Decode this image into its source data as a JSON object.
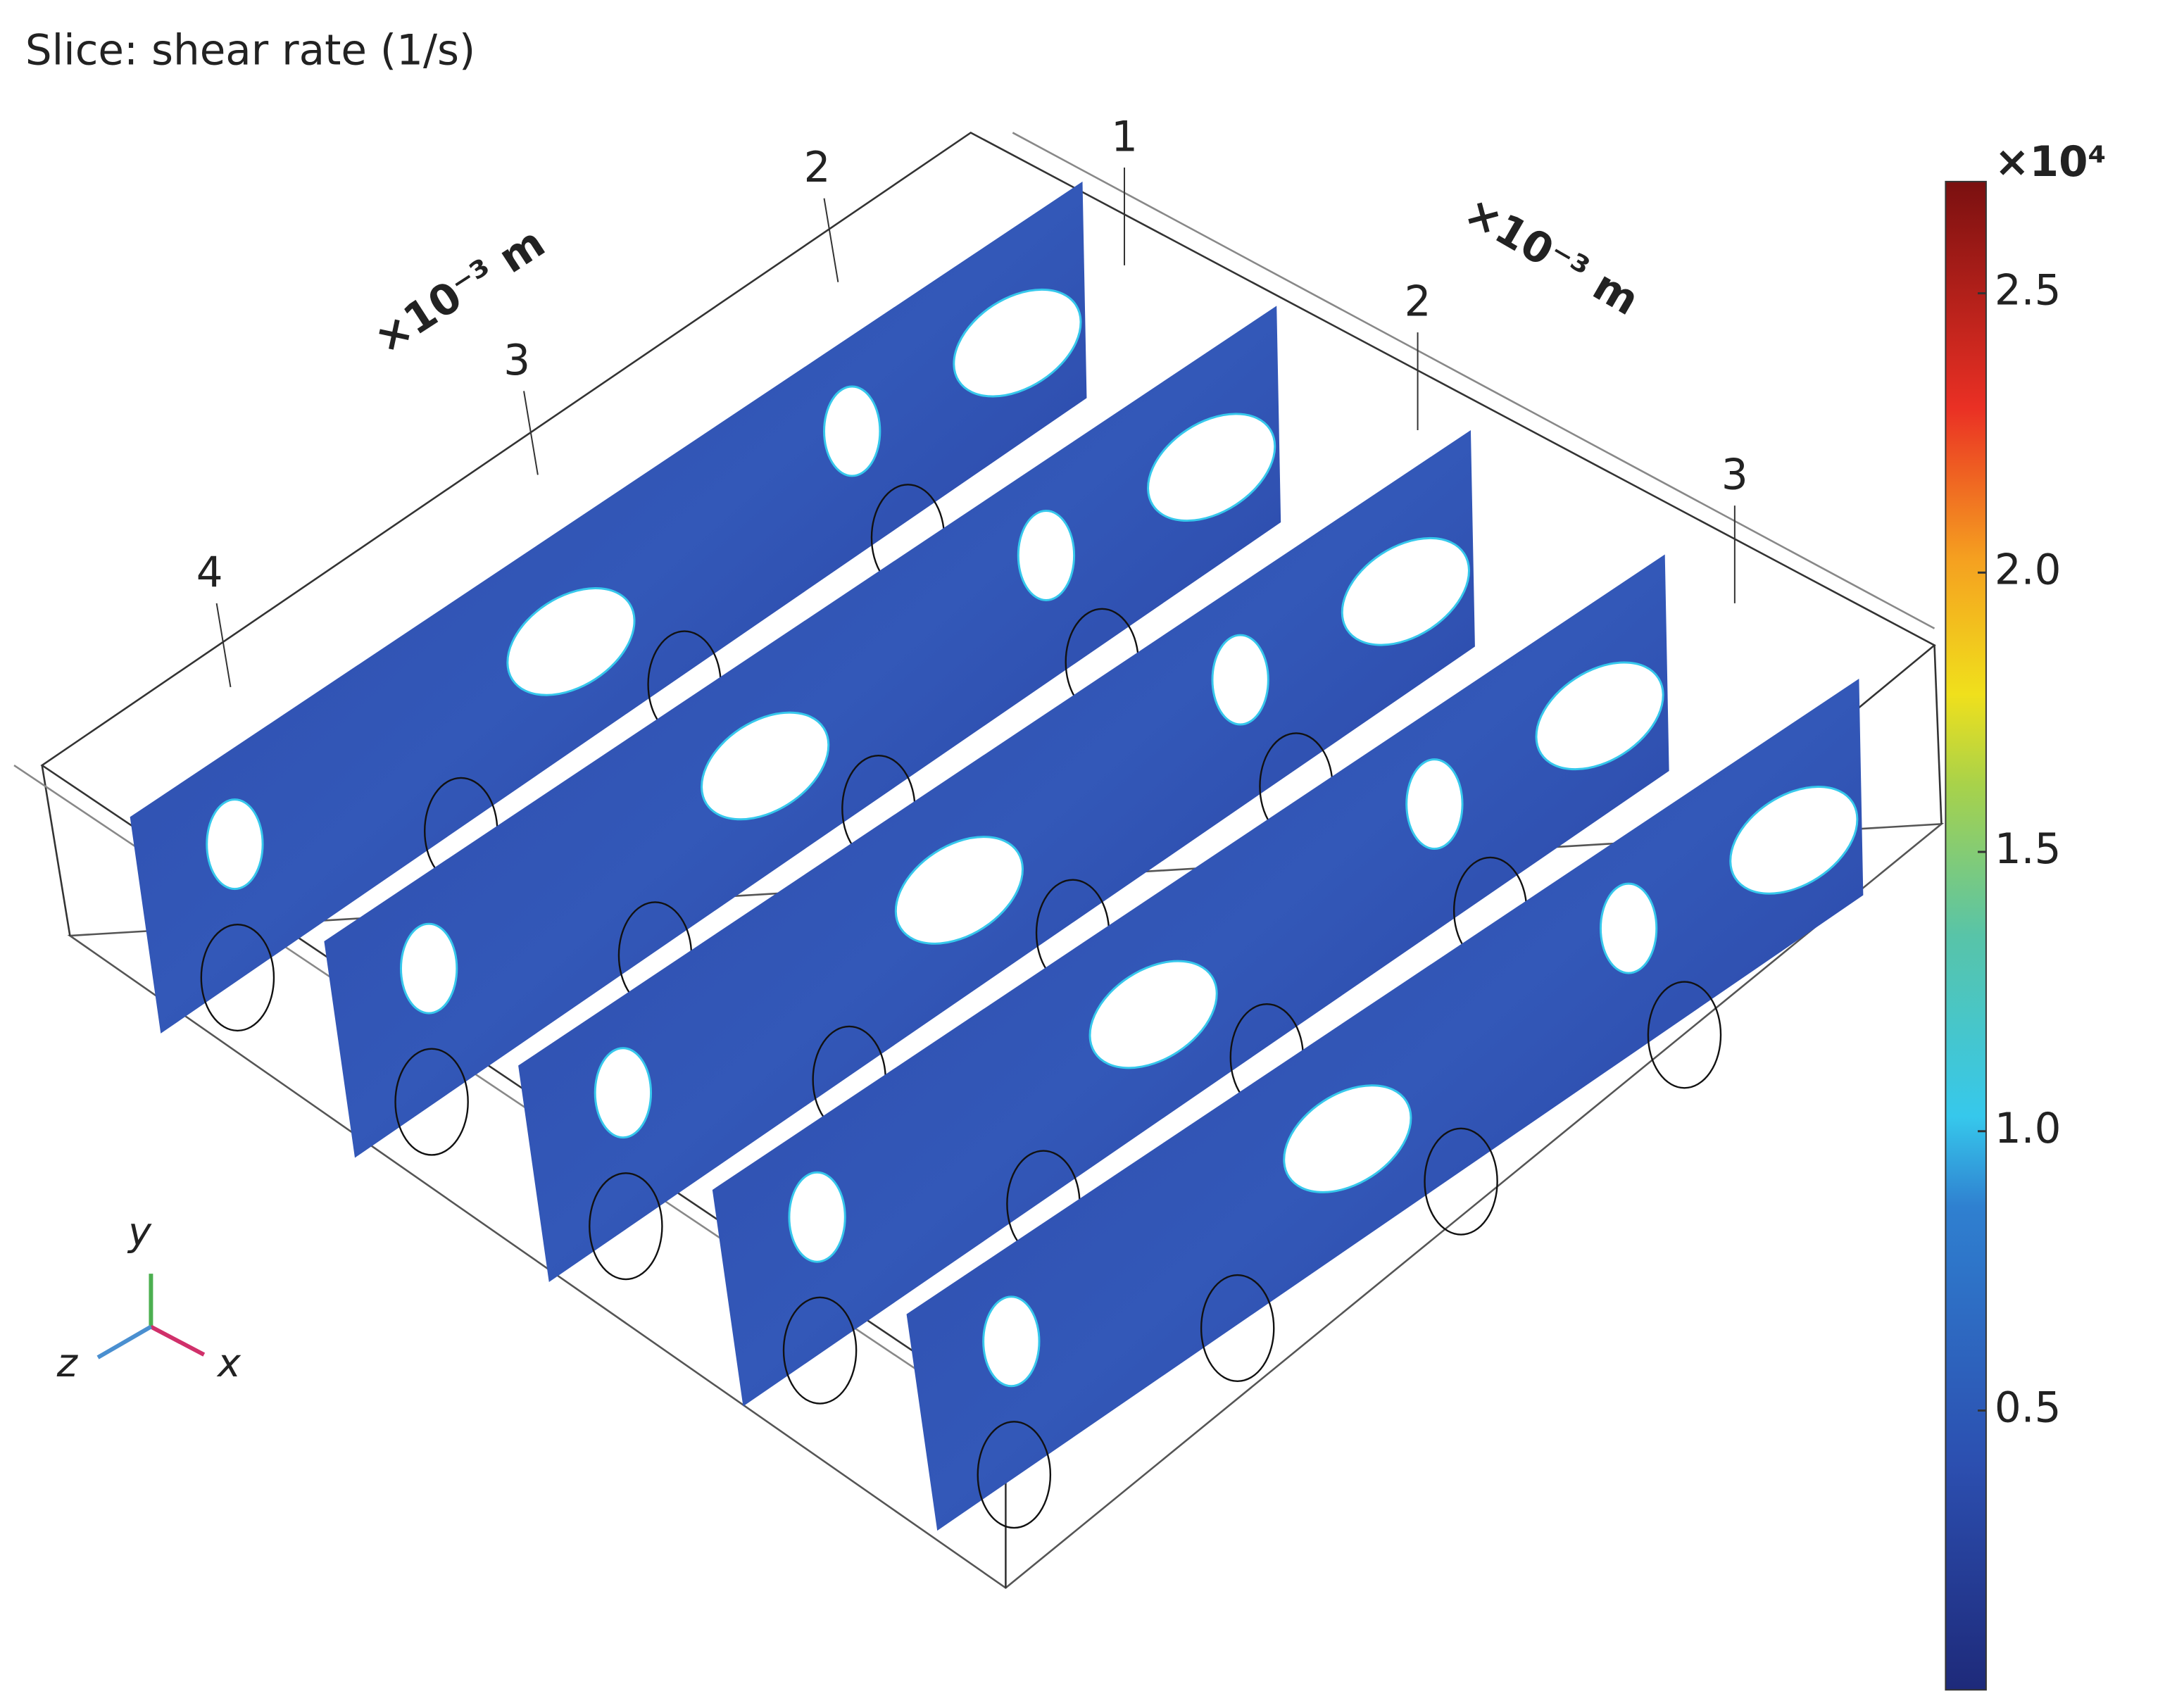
{
  "title": "Slice: shear rate (1/s)",
  "colorbar": {
    "multiplier": "×10⁴",
    "range": [
      0,
      2.7
    ],
    "ticks": [
      0.5,
      {
        "value": 1,
        "label": "1.0"
      },
      1.5,
      {
        "value": 2,
        "label": "2.0"
      },
      2.5
    ]
  },
  "left_axis": {
    "unit": "×10⁻³ m",
    "ticks": [
      2,
      3,
      4
    ]
  },
  "right_axis": {
    "unit": "×10⁻³ m",
    "ticks": [
      1,
      2,
      3
    ]
  },
  "triad": [
    "y",
    "z",
    "x"
  ]
}
